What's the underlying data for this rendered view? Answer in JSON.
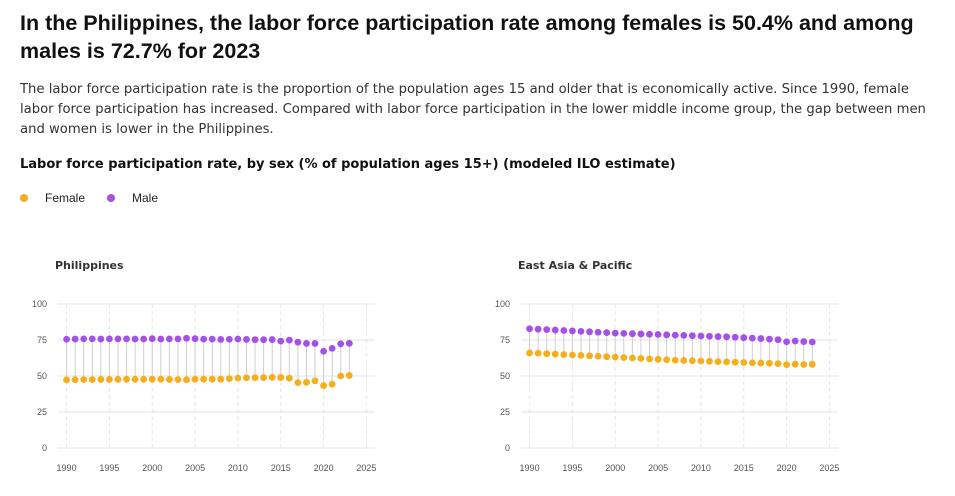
{
  "header": {
    "title": "In the Philippines, the labor force participation rate among females is 50.4% and among males is 72.7% for 2023",
    "description": "The labor force participation rate is the proportion of the population ages 15 and older that is economically active. Since 1990, female labor force participation has increased. Compared with labor force participation in the lower middle income group, the gap between men and women is lower in the Philippines.",
    "chart_subtitle": "Labor force participation rate, by sex (% of population ages 15+) (modeled ILO estimate)"
  },
  "legend": {
    "items": [
      {
        "label": "Female",
        "color": "#f5ae1c"
      },
      {
        "label": "Male",
        "color": "#a550e8"
      }
    ]
  },
  "colors": {
    "female": "#f5ae1c",
    "male": "#a550e8",
    "grid": "#e6e6e6",
    "stem": "#cfcfcf"
  },
  "chart_data": [
    {
      "type": "scatter",
      "title": "Philippines",
      "xlabel": "",
      "ylabel": "",
      "x": [
        1990,
        1991,
        1992,
        1993,
        1994,
        1995,
        1996,
        1997,
        1998,
        1999,
        2000,
        2001,
        2002,
        2003,
        2004,
        2005,
        2006,
        2007,
        2008,
        2009,
        2010,
        2011,
        2012,
        2013,
        2014,
        2015,
        2016,
        2017,
        2018,
        2019,
        2020,
        2021,
        2022,
        2023
      ],
      "xlim": [
        1989,
        2026
      ],
      "ylim": [
        0,
        100
      ],
      "x_ticks": [
        1990,
        1995,
        2000,
        2005,
        2010,
        2015,
        2020,
        2025
      ],
      "y_ticks": [
        0,
        25,
        50,
        75,
        100
      ],
      "grid": true,
      "series": [
        {
          "name": "Female",
          "color": "#f5ae1c",
          "values": [
            47.3,
            47.4,
            47.5,
            47.5,
            47.6,
            47.6,
            47.6,
            47.7,
            47.7,
            47.7,
            47.8,
            47.8,
            47.6,
            47.5,
            47.4,
            47.8,
            47.8,
            47.8,
            47.8,
            48.2,
            48.6,
            48.8,
            48.8,
            48.9,
            49.1,
            49.0,
            48.5,
            45.4,
            45.6,
            46.6,
            43.3,
            44.3,
            50.0,
            50.4
          ]
        },
        {
          "name": "Male",
          "color": "#a550e8",
          "values": [
            75.5,
            75.7,
            75.8,
            75.8,
            75.7,
            75.8,
            75.8,
            75.8,
            75.7,
            75.7,
            75.9,
            75.7,
            75.8,
            75.8,
            76.2,
            75.9,
            75.6,
            75.6,
            75.4,
            75.5,
            75.7,
            75.4,
            75.2,
            75.2,
            75.3,
            74.2,
            74.9,
            73.5,
            72.6,
            72.6,
            67.2,
            69.2,
            72.3,
            72.7
          ]
        }
      ]
    },
    {
      "type": "scatter",
      "title": "East Asia & Pacific",
      "xlabel": "",
      "ylabel": "",
      "x": [
        1990,
        1991,
        1992,
        1993,
        1994,
        1995,
        1996,
        1997,
        1998,
        1999,
        2000,
        2001,
        2002,
        2003,
        2004,
        2005,
        2006,
        2007,
        2008,
        2009,
        2010,
        2011,
        2012,
        2013,
        2014,
        2015,
        2016,
        2017,
        2018,
        2019,
        2020,
        2021,
        2022,
        2023
      ],
      "xlim": [
        1989,
        2026
      ],
      "ylim": [
        0,
        100
      ],
      "x_ticks": [
        1990,
        1995,
        2000,
        2005,
        2010,
        2015,
        2020,
        2025
      ],
      "y_ticks": [
        0,
        25,
        50,
        75,
        100
      ],
      "grid": true,
      "series": [
        {
          "name": "Female",
          "color": "#f5ae1c",
          "values": [
            66.0,
            65.8,
            65.5,
            65.2,
            64.9,
            64.6,
            64.3,
            64.0,
            63.7,
            63.4,
            63.1,
            62.8,
            62.5,
            62.2,
            61.9,
            61.6,
            61.3,
            61.0,
            60.8,
            60.6,
            60.4,
            60.2,
            60.0,
            59.8,
            59.6,
            59.4,
            59.2,
            59.0,
            58.8,
            58.6,
            57.9,
            58.2,
            58.0,
            58.1
          ]
        },
        {
          "name": "Male",
          "color": "#a550e8",
          "values": [
            82.8,
            82.5,
            82.2,
            81.9,
            81.6,
            81.3,
            81.0,
            80.7,
            80.4,
            80.1,
            79.8,
            79.6,
            79.4,
            79.2,
            79.0,
            78.8,
            78.6,
            78.4,
            78.2,
            78.0,
            77.8,
            77.6,
            77.4,
            77.2,
            76.9,
            76.6,
            76.3,
            76.0,
            75.6,
            75.2,
            73.8,
            74.3,
            73.9,
            73.6
          ]
        }
      ]
    }
  ]
}
